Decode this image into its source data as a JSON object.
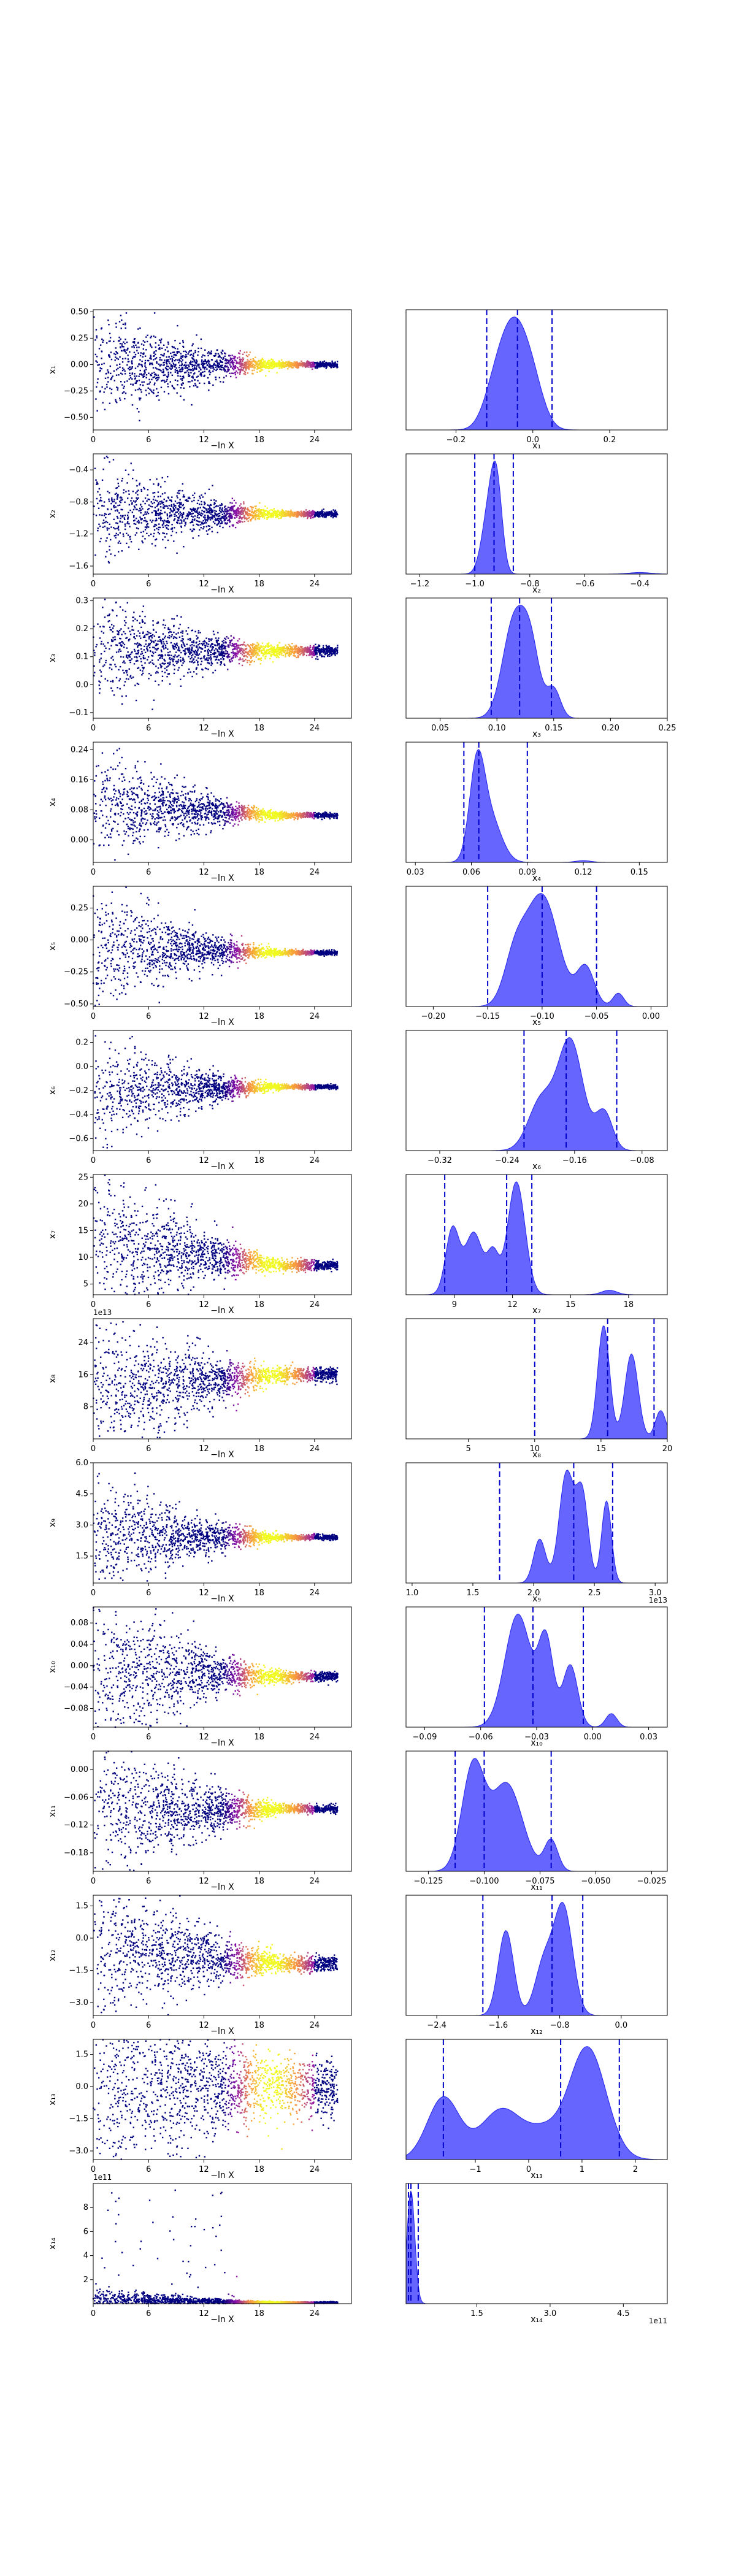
{
  "chart_data": [
    {
      "type": "scatter",
      "row": 1,
      "panel": "trace",
      "xlabel": "−ln X",
      "ylabel": "x₁",
      "xlim": [
        0,
        28
      ],
      "ylim": [
        -0.62,
        0.52
      ],
      "xticks": [
        "0",
        "6",
        "12",
        "18",
        "24"
      ],
      "yticks": [
        "0.50",
        "0.25",
        "0.00",
        "−0.25",
        "−0.50"
      ],
      "ytick_values": [
        0.5,
        0.25,
        0,
        -0.25,
        -0.5
      ],
      "offset": "",
      "trace": {
        "start": 0.0,
        "end": 0.0,
        "spread_start": 0.55,
        "spread_end": 0.03
      }
    },
    {
      "type": "area",
      "row": 1,
      "panel": "posterior",
      "xlabel": "x₁",
      "xlim": [
        -0.33,
        0.35
      ],
      "xticks": [
        "−0.2",
        "0.0",
        "0.2"
      ],
      "xtick_values": [
        -0.2,
        0.0,
        0.2
      ],
      "offset": "",
      "quantiles": [
        -0.12,
        -0.04,
        0.05
      ],
      "peaks": [
        {
          "x": -0.05,
          "w": 0.035,
          "h": 1.0
        },
        {
          "x": -0.1,
          "w": 0.03,
          "h": 0.35
        },
        {
          "x": 0.0,
          "w": 0.03,
          "h": 0.4
        }
      ]
    },
    {
      "type": "scatter",
      "row": 2,
      "panel": "trace",
      "xlabel": "−ln X",
      "ylabel": "x₂",
      "xlim": [
        0,
        28
      ],
      "ylim": [
        -1.7,
        -0.2
      ],
      "xticks": [
        "0",
        "6",
        "12",
        "18",
        "24"
      ],
      "yticks": [
        "−0.4",
        "−0.8",
        "−1.2",
        "−1.6"
      ],
      "ytick_values": [
        -0.4,
        -0.8,
        -1.2,
        -1.6
      ],
      "offset": "",
      "trace": {
        "start": -0.95,
        "end": -0.95,
        "spread_start": 0.7,
        "spread_end": 0.04
      }
    },
    {
      "type": "area",
      "row": 2,
      "panel": "posterior",
      "xlabel": "x₂",
      "xlim": [
        -1.25,
        -0.3
      ],
      "xticks": [
        "−1.2",
        "−1.0",
        "−0.8",
        "−0.6",
        "−0.4"
      ],
      "xtick_values": [
        -1.2,
        -1.0,
        -0.8,
        -0.6,
        -0.4
      ],
      "offset": "",
      "quantiles": [
        -1.0,
        -0.93,
        -0.86
      ],
      "peaks": [
        {
          "x": -0.92,
          "w": 0.02,
          "h": 1.0
        },
        {
          "x": -0.95,
          "w": 0.025,
          "h": 0.75
        },
        {
          "x": -0.4,
          "w": 0.04,
          "h": 0.02
        }
      ]
    },
    {
      "type": "scatter",
      "row": 3,
      "panel": "trace",
      "xlabel": "−ln X",
      "ylabel": "x₃",
      "xlim": [
        0,
        28
      ],
      "ylim": [
        -0.12,
        0.31
      ],
      "xticks": [
        "0",
        "6",
        "12",
        "18",
        "24"
      ],
      "yticks": [
        "0.3",
        "0.2",
        "0.1",
        "0.0",
        "−0.1"
      ],
      "ytick_values": [
        0.3,
        0.2,
        0.1,
        0.0,
        -0.1
      ],
      "offset": "",
      "trace": {
        "start": 0.12,
        "end": 0.12,
        "spread_start": 0.2,
        "spread_end": 0.02
      }
    },
    {
      "type": "area",
      "row": 3,
      "panel": "posterior",
      "xlabel": "x₃",
      "xlim": [
        0.02,
        0.25
      ],
      "xticks": [
        "0.05",
        "0.10",
        "0.15",
        "0.20",
        "0.25"
      ],
      "xtick_values": [
        0.05,
        0.1,
        0.15,
        0.2,
        0.25
      ],
      "offset": "",
      "quantiles": [
        0.095,
        0.12,
        0.148
      ],
      "peaks": [
        {
          "x": 0.115,
          "w": 0.01,
          "h": 1.0
        },
        {
          "x": 0.13,
          "w": 0.008,
          "h": 0.65
        },
        {
          "x": 0.15,
          "w": 0.006,
          "h": 0.3
        }
      ]
    },
    {
      "type": "scatter",
      "row": 4,
      "panel": "trace",
      "xlabel": "−ln X",
      "ylabel": "x₄",
      "xlim": [
        0,
        28
      ],
      "ylim": [
        -0.06,
        0.26
      ],
      "xticks": [
        "0",
        "6",
        "12",
        "18",
        "24"
      ],
      "yticks": [
        "0.24",
        "0.16",
        "0.08",
        "0.00"
      ],
      "ytick_values": [
        0.24,
        0.16,
        0.08,
        0.0
      ],
      "offset": "",
      "trace": {
        "start": 0.1,
        "end": 0.065,
        "spread_start": 0.15,
        "spread_end": 0.008
      }
    },
    {
      "type": "area",
      "row": 4,
      "panel": "posterior",
      "xlabel": "x₄",
      "xlim": [
        0.025,
        0.165
      ],
      "xticks": [
        "0.03",
        "0.06",
        "0.09",
        "0.12",
        "0.15"
      ],
      "xtick_values": [
        0.03,
        0.06,
        0.09,
        0.12,
        0.15
      ],
      "offset": "",
      "quantiles": [
        0.056,
        0.064,
        0.09
      ],
      "peaks": [
        {
          "x": 0.063,
          "w": 0.004,
          "h": 1.0
        },
        {
          "x": 0.07,
          "w": 0.006,
          "h": 0.5
        },
        {
          "x": 0.12,
          "w": 0.004,
          "h": 0.02
        }
      ]
    },
    {
      "type": "scatter",
      "row": 5,
      "panel": "trace",
      "xlabel": "−ln X",
      "ylabel": "x₅",
      "xlim": [
        0,
        28
      ],
      "ylim": [
        -0.52,
        0.42
      ],
      "xticks": [
        "0",
        "6",
        "12",
        "18",
        "24"
      ],
      "yticks": [
        "0.25",
        "0.00",
        "−0.25",
        "−0.50"
      ],
      "ytick_values": [
        0.25,
        0.0,
        -0.25,
        -0.5
      ],
      "offset": "",
      "trace": {
        "start": -0.05,
        "end": -0.1,
        "spread_start": 0.5,
        "spread_end": 0.02
      }
    },
    {
      "type": "area",
      "row": 5,
      "panel": "posterior",
      "xlabel": "x₅",
      "xlim": [
        -0.225,
        0.015
      ],
      "xticks": [
        "−0.20",
        "−0.15",
        "−0.10",
        "−0.05",
        "0.00"
      ],
      "xtick_values": [
        -0.2,
        -0.15,
        -0.1,
        -0.05,
        0.0
      ],
      "offset": "",
      "quantiles": [
        -0.15,
        -0.1,
        -0.05
      ],
      "peaks": [
        {
          "x": -0.1,
          "w": 0.015,
          "h": 1.0
        },
        {
          "x": -0.125,
          "w": 0.01,
          "h": 0.4
        },
        {
          "x": -0.06,
          "w": 0.008,
          "h": 0.35
        },
        {
          "x": -0.03,
          "w": 0.005,
          "h": 0.12
        }
      ]
    },
    {
      "type": "scatter",
      "row": 6,
      "panel": "trace",
      "xlabel": "−ln X",
      "ylabel": "x₆",
      "xlim": [
        0,
        28
      ],
      "ylim": [
        -0.7,
        0.3
      ],
      "xticks": [
        "0",
        "6",
        "12",
        "18",
        "24"
      ],
      "yticks": [
        "0.2",
        "0.0",
        "−0.2",
        "−0.4",
        "−0.6"
      ],
      "ytick_values": [
        0.2,
        0.0,
        -0.2,
        -0.4,
        -0.6
      ],
      "offset": "",
      "trace": {
        "start": -0.2,
        "end": -0.17,
        "spread_start": 0.5,
        "spread_end": 0.02
      }
    },
    {
      "type": "area",
      "row": 6,
      "panel": "posterior",
      "xlabel": "x₆",
      "xlim": [
        -0.36,
        -0.05
      ],
      "xticks": [
        "−0.32",
        "−0.24",
        "−0.16",
        "−0.08"
      ],
      "xtick_values": [
        -0.32,
        -0.24,
        -0.16,
        -0.08
      ],
      "offset": "",
      "quantiles": [
        -0.22,
        -0.17,
        -0.11
      ],
      "peaks": [
        {
          "x": -0.165,
          "w": 0.015,
          "h": 1.0
        },
        {
          "x": -0.2,
          "w": 0.015,
          "h": 0.45
        },
        {
          "x": -0.125,
          "w": 0.01,
          "h": 0.35
        }
      ]
    },
    {
      "type": "scatter",
      "row": 7,
      "panel": "trace",
      "xlabel": "−ln X",
      "ylabel": "x₇",
      "xlim": [
        0,
        28
      ],
      "ylim": [
        3,
        25.5
      ],
      "xticks": [
        "0",
        "6",
        "12",
        "18",
        "24"
      ],
      "yticks": [
        "25",
        "20",
        "15",
        "10",
        "5"
      ],
      "ytick_values": [
        25,
        20,
        15,
        10,
        5
      ],
      "offset": "",
      "trace": {
        "start": 13,
        "end": 8.5,
        "spread_start": 16,
        "spread_end": 1
      }
    },
    {
      "type": "area",
      "row": 7,
      "panel": "posterior",
      "xlabel": "x₇",
      "xlim": [
        6.5,
        20
      ],
      "xticks": [
        "9",
        "12",
        "15",
        "18"
      ],
      "xtick_values": [
        9,
        12,
        15,
        18
      ],
      "offset": "",
      "quantiles": [
        8.5,
        11.7,
        13.0
      ],
      "peaks": [
        {
          "x": 12.2,
          "w": 0.45,
          "h": 1.0
        },
        {
          "x": 8.9,
          "w": 0.35,
          "h": 0.58
        },
        {
          "x": 10.0,
          "w": 0.45,
          "h": 0.55
        },
        {
          "x": 11.0,
          "w": 0.3,
          "h": 0.35
        },
        {
          "x": 17.0,
          "w": 0.4,
          "h": 0.04
        }
      ]
    },
    {
      "type": "scatter",
      "row": 8,
      "panel": "trace",
      "xlabel": "−ln X",
      "ylabel": "x₈",
      "xlim": [
        0,
        28
      ],
      "ylim": [
        0,
        30
      ],
      "xticks": [
        "0",
        "6",
        "12",
        "18",
        "24"
      ],
      "yticks": [
        "24",
        "16",
        "8"
      ],
      "ytick_values": [
        24,
        16,
        8
      ],
      "offset": "1e13",
      "trace": {
        "start": 12,
        "end": 16,
        "spread_start": 20,
        "spread_end": 2
      }
    },
    {
      "type": "area",
      "row": 8,
      "panel": "posterior",
      "xlabel": "x₈",
      "xlim": [
        0.3,
        20
      ],
      "xticks": [
        "5",
        "10",
        "15",
        "20"
      ],
      "xtick_values": [
        5,
        10,
        15,
        20
      ],
      "offset": "",
      "quantiles": [
        10,
        15.5,
        19
      ],
      "peaks": [
        {
          "x": 15.2,
          "w": 0.45,
          "h": 1.0
        },
        {
          "x": 17.3,
          "w": 0.5,
          "h": 0.75
        },
        {
          "x": 19.5,
          "w": 0.4,
          "h": 0.25
        }
      ]
    },
    {
      "type": "scatter",
      "row": 9,
      "panel": "trace",
      "xlabel": "−ln X",
      "ylabel": "x₉",
      "xlim": [
        0,
        28
      ],
      "ylim": [
        0.2,
        6.0
      ],
      "xticks": [
        "0",
        "6",
        "12",
        "18",
        "24"
      ],
      "yticks": [
        "6.0",
        "4.5",
        "3.0",
        "1.5"
      ],
      "ytick_values": [
        6.0,
        4.5,
        3.0,
        1.5
      ],
      "offset": "",
      "trace": {
        "start": 2.4,
        "end": 2.4,
        "spread_start": 3,
        "spread_end": 0.15
      }
    },
    {
      "type": "area",
      "row": 9,
      "panel": "posterior",
      "xlabel": "x₉",
      "xlim": [
        0.95,
        3.1
      ],
      "xticks": [
        "1.0",
        "1.5",
        "2.0",
        "2.5",
        "3.0"
      ],
      "xtick_values": [
        1.0,
        1.5,
        2.0,
        2.5,
        3.0
      ],
      "offset": "1e13",
      "quantiles": [
        1.72,
        2.33,
        2.65
      ],
      "peaks": [
        {
          "x": 2.27,
          "w": 0.06,
          "h": 1.0
        },
        {
          "x": 2.4,
          "w": 0.05,
          "h": 0.8
        },
        {
          "x": 2.6,
          "w": 0.04,
          "h": 0.75
        },
        {
          "x": 2.05,
          "w": 0.05,
          "h": 0.4
        }
      ]
    },
    {
      "type": "scatter",
      "row": 10,
      "panel": "trace",
      "xlabel": "−ln X",
      "ylabel": "x₁₀",
      "xlim": [
        0,
        28
      ],
      "ylim": [
        -0.115,
        0.11
      ],
      "xticks": [
        "0",
        "6",
        "12",
        "18",
        "24"
      ],
      "yticks": [
        "0.08",
        "0.04",
        "0.00",
        "−0.04",
        "−0.08"
      ],
      "ytick_values": [
        0.08,
        0.04,
        0.0,
        -0.04,
        -0.08
      ],
      "offset": "",
      "trace": {
        "start": -0.01,
        "end": -0.02,
        "spread_start": 0.18,
        "spread_end": 0.01
      }
    },
    {
      "type": "area",
      "row": 10,
      "panel": "posterior",
      "xlabel": "x₁₀",
      "xlim": [
        -0.1,
        0.04
      ],
      "xticks": [
        "−0.09",
        "−0.06",
        "−0.03",
        "0.00",
        "0.03"
      ],
      "xtick_values": [
        -0.09,
        -0.06,
        -0.03,
        0.0,
        0.03
      ],
      "offset": "",
      "quantiles": [
        -0.058,
        -0.032,
        -0.005
      ],
      "peaks": [
        {
          "x": -0.04,
          "w": 0.007,
          "h": 1.0
        },
        {
          "x": -0.025,
          "w": 0.004,
          "h": 0.75
        },
        {
          "x": -0.012,
          "w": 0.004,
          "h": 0.55
        },
        {
          "x": 0.01,
          "w": 0.003,
          "h": 0.12
        }
      ]
    },
    {
      "type": "scatter",
      "row": 11,
      "panel": "trace",
      "xlabel": "−ln X",
      "ylabel": "x₁₁",
      "xlim": [
        0,
        28
      ],
      "ylim": [
        -0.22,
        0.04
      ],
      "xticks": [
        "0",
        "6",
        "12",
        "18",
        "24"
      ],
      "yticks": [
        "0.00",
        "−0.06",
        "−0.12",
        "−0.18"
      ],
      "ytick_values": [
        0.0,
        -0.06,
        -0.12,
        -0.18
      ],
      "offset": "",
      "trace": {
        "start": -0.09,
        "end": -0.085,
        "spread_start": 0.2,
        "spread_end": 0.01
      }
    },
    {
      "type": "area",
      "row": 11,
      "panel": "posterior",
      "xlabel": "x₁₁",
      "xlim": [
        -0.135,
        -0.018
      ],
      "xticks": [
        "−0.125",
        "−0.100",
        "−0.075",
        "−0.050",
        "−0.025"
      ],
      "xtick_values": [
        -0.125,
        -0.1,
        -0.075,
        -0.05,
        -0.025
      ],
      "offset": "",
      "quantiles": [
        -0.113,
        -0.1,
        -0.07
      ],
      "peaks": [
        {
          "x": -0.105,
          "w": 0.005,
          "h": 1.0
        },
        {
          "x": -0.09,
          "w": 0.007,
          "h": 0.85
        },
        {
          "x": -0.07,
          "w": 0.003,
          "h": 0.3
        }
      ]
    },
    {
      "type": "scatter",
      "row": 12,
      "panel": "trace",
      "xlabel": "−ln X",
      "ylabel": "x₁₂",
      "xlim": [
        0,
        28
      ],
      "ylim": [
        -3.6,
        2.0
      ],
      "xticks": [
        "0",
        "6",
        "12",
        "18",
        "24"
      ],
      "yticks": [
        "1.5",
        "0.0",
        "−1.5",
        "−3.0"
      ],
      "ytick_values": [
        1.5,
        0.0,
        -1.5,
        -3.0
      ],
      "offset": "",
      "trace": {
        "start": -0.5,
        "end": -1.2,
        "spread_start": 4,
        "spread_end": 0.4
      }
    },
    {
      "type": "area",
      "row": 12,
      "panel": "posterior",
      "xlabel": "x₁₂",
      "xlim": [
        -2.8,
        0.6
      ],
      "xticks": [
        "−2.4",
        "−1.6",
        "−0.8",
        "0.0"
      ],
      "xtick_values": [
        -2.4,
        -1.6,
        -0.8,
        0.0
      ],
      "offset": "",
      "quantiles": [
        -1.8,
        -0.9,
        -0.5
      ],
      "peaks": [
        {
          "x": -0.75,
          "w": 0.12,
          "h": 1.0
        },
        {
          "x": -1.5,
          "w": 0.1,
          "h": 0.8
        },
        {
          "x": -1.0,
          "w": 0.12,
          "h": 0.5
        }
      ]
    },
    {
      "type": "scatter",
      "row": 13,
      "panel": "trace",
      "xlabel": "−ln X",
      "ylabel": "x₁₃",
      "xlim": [
        0,
        28
      ],
      "ylim": [
        -3.4,
        2.2
      ],
      "xticks": [
        "0",
        "6",
        "12",
        "18",
        "24"
      ],
      "yticks": [
        "1.5",
        "0.0",
        "−1.5",
        "−3.0"
      ],
      "ytick_values": [
        1.5,
        0.0,
        -1.5,
        -3.0
      ],
      "offset": "",
      "trace": {
        "start": 0.0,
        "end": 0.0,
        "spread_start": 4.5,
        "spread_end": 1.5
      }
    },
    {
      "type": "area",
      "row": 13,
      "panel": "posterior",
      "xlabel": "x₁₃",
      "xlim": [
        -2.3,
        2.6
      ],
      "xticks": [
        "−1",
        "0",
        "1",
        "2"
      ],
      "xtick_values": [
        -1,
        0,
        1,
        2
      ],
      "offset": "",
      "quantiles": [
        -1.6,
        0.6,
        1.7
      ],
      "peaks": [
        {
          "x": 1.1,
          "w": 0.35,
          "h": 1.0
        },
        {
          "x": -1.6,
          "w": 0.3,
          "h": 0.55
        },
        {
          "x": -0.5,
          "w": 0.4,
          "h": 0.45
        },
        {
          "x": 0.3,
          "w": 0.3,
          "h": 0.2
        }
      ]
    },
    {
      "type": "scatter",
      "row": 14,
      "panel": "trace",
      "xlabel": "−ln X",
      "ylabel": "x₁₄",
      "xlim": [
        0,
        28
      ],
      "ylim": [
        0,
        10
      ],
      "xticks": [
        "0",
        "6",
        "12",
        "18",
        "24"
      ],
      "yticks": [
        "8",
        "6",
        "4",
        "2"
      ],
      "ytick_values": [
        8,
        6,
        4,
        2
      ],
      "offset": "1e11",
      "trace": {
        "start": 0.3,
        "end": 0.1,
        "spread_start": 1,
        "spread_end": 0.05,
        "outliers": true
      }
    },
    {
      "type": "area",
      "row": 14,
      "panel": "posterior",
      "xlabel": "x₁₄",
      "xlim": [
        0.05,
        5.4
      ],
      "xticks": [
        "1.5",
        "3.0",
        "4.5"
      ],
      "xtick_values": [
        1.5,
        3.0,
        4.5
      ],
      "offset": "1e11",
      "quantiles": [
        0.1,
        0.15,
        0.3
      ],
      "peaks": [
        {
          "x": 0.15,
          "w": 0.08,
          "h": 1.0
        }
      ]
    }
  ],
  "colors": {
    "scatter_low": "#000080",
    "scatter_mid": "#8b10a8",
    "scatter_high": "#f89540",
    "scatter_top": "#f0f921",
    "posterior_fill": "#3b3bff",
    "posterior_edge": "#2222ee",
    "quantile_line": "#0000cc"
  }
}
